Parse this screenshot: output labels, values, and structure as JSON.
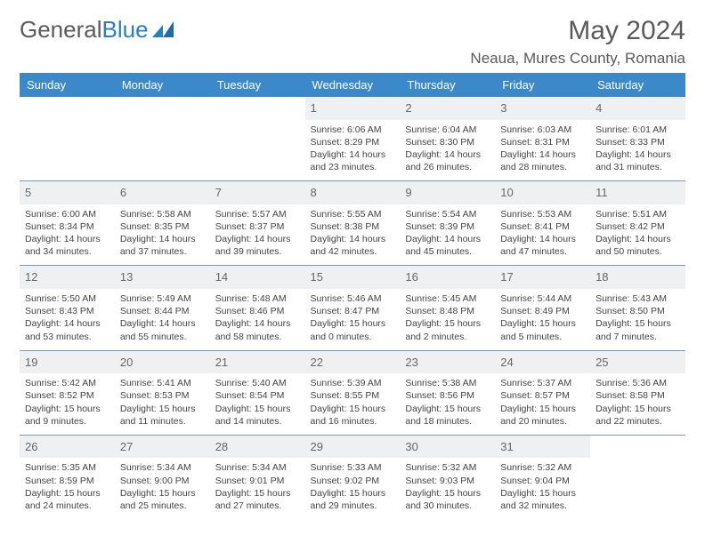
{
  "logo": {
    "general": "General",
    "blue": "Blue"
  },
  "title": "May 2024",
  "location": "Neaua, Mures County, Romania",
  "colors": {
    "header_bg": "#3b89c9",
    "header_text": "#ffffff",
    "daynum_bg": "#eef0f2",
    "daynum_text": "#676767",
    "rule": "#7a98b8",
    "body_text": "#444444",
    "title_text": "#5a5a5a"
  },
  "weekdays": [
    "Sunday",
    "Monday",
    "Tuesday",
    "Wednesday",
    "Thursday",
    "Friday",
    "Saturday"
  ],
  "weeks": [
    [
      null,
      null,
      null,
      {
        "n": "1",
        "l1": "Sunrise: 6:06 AM",
        "l2": "Sunset: 8:29 PM",
        "l3": "Daylight: 14 hours",
        "l4": "and 23 minutes."
      },
      {
        "n": "2",
        "l1": "Sunrise: 6:04 AM",
        "l2": "Sunset: 8:30 PM",
        "l3": "Daylight: 14 hours",
        "l4": "and 26 minutes."
      },
      {
        "n": "3",
        "l1": "Sunrise: 6:03 AM",
        "l2": "Sunset: 8:31 PM",
        "l3": "Daylight: 14 hours",
        "l4": "and 28 minutes."
      },
      {
        "n": "4",
        "l1": "Sunrise: 6:01 AM",
        "l2": "Sunset: 8:33 PM",
        "l3": "Daylight: 14 hours",
        "l4": "and 31 minutes."
      }
    ],
    [
      {
        "n": "5",
        "l1": "Sunrise: 6:00 AM",
        "l2": "Sunset: 8:34 PM",
        "l3": "Daylight: 14 hours",
        "l4": "and 34 minutes."
      },
      {
        "n": "6",
        "l1": "Sunrise: 5:58 AM",
        "l2": "Sunset: 8:35 PM",
        "l3": "Daylight: 14 hours",
        "l4": "and 37 minutes."
      },
      {
        "n": "7",
        "l1": "Sunrise: 5:57 AM",
        "l2": "Sunset: 8:37 PM",
        "l3": "Daylight: 14 hours",
        "l4": "and 39 minutes."
      },
      {
        "n": "8",
        "l1": "Sunrise: 5:55 AM",
        "l2": "Sunset: 8:38 PM",
        "l3": "Daylight: 14 hours",
        "l4": "and 42 minutes."
      },
      {
        "n": "9",
        "l1": "Sunrise: 5:54 AM",
        "l2": "Sunset: 8:39 PM",
        "l3": "Daylight: 14 hours",
        "l4": "and 45 minutes."
      },
      {
        "n": "10",
        "l1": "Sunrise: 5:53 AM",
        "l2": "Sunset: 8:41 PM",
        "l3": "Daylight: 14 hours",
        "l4": "and 47 minutes."
      },
      {
        "n": "11",
        "l1": "Sunrise: 5:51 AM",
        "l2": "Sunset: 8:42 PM",
        "l3": "Daylight: 14 hours",
        "l4": "and 50 minutes."
      }
    ],
    [
      {
        "n": "12",
        "l1": "Sunrise: 5:50 AM",
        "l2": "Sunset: 8:43 PM",
        "l3": "Daylight: 14 hours",
        "l4": "and 53 minutes."
      },
      {
        "n": "13",
        "l1": "Sunrise: 5:49 AM",
        "l2": "Sunset: 8:44 PM",
        "l3": "Daylight: 14 hours",
        "l4": "and 55 minutes."
      },
      {
        "n": "14",
        "l1": "Sunrise: 5:48 AM",
        "l2": "Sunset: 8:46 PM",
        "l3": "Daylight: 14 hours",
        "l4": "and 58 minutes."
      },
      {
        "n": "15",
        "l1": "Sunrise: 5:46 AM",
        "l2": "Sunset: 8:47 PM",
        "l3": "Daylight: 15 hours",
        "l4": "and 0 minutes."
      },
      {
        "n": "16",
        "l1": "Sunrise: 5:45 AM",
        "l2": "Sunset: 8:48 PM",
        "l3": "Daylight: 15 hours",
        "l4": "and 2 minutes."
      },
      {
        "n": "17",
        "l1": "Sunrise: 5:44 AM",
        "l2": "Sunset: 8:49 PM",
        "l3": "Daylight: 15 hours",
        "l4": "and 5 minutes."
      },
      {
        "n": "18",
        "l1": "Sunrise: 5:43 AM",
        "l2": "Sunset: 8:50 PM",
        "l3": "Daylight: 15 hours",
        "l4": "and 7 minutes."
      }
    ],
    [
      {
        "n": "19",
        "l1": "Sunrise: 5:42 AM",
        "l2": "Sunset: 8:52 PM",
        "l3": "Daylight: 15 hours",
        "l4": "and 9 minutes."
      },
      {
        "n": "20",
        "l1": "Sunrise: 5:41 AM",
        "l2": "Sunset: 8:53 PM",
        "l3": "Daylight: 15 hours",
        "l4": "and 11 minutes."
      },
      {
        "n": "21",
        "l1": "Sunrise: 5:40 AM",
        "l2": "Sunset: 8:54 PM",
        "l3": "Daylight: 15 hours",
        "l4": "and 14 minutes."
      },
      {
        "n": "22",
        "l1": "Sunrise: 5:39 AM",
        "l2": "Sunset: 8:55 PM",
        "l3": "Daylight: 15 hours",
        "l4": "and 16 minutes."
      },
      {
        "n": "23",
        "l1": "Sunrise: 5:38 AM",
        "l2": "Sunset: 8:56 PM",
        "l3": "Daylight: 15 hours",
        "l4": "and 18 minutes."
      },
      {
        "n": "24",
        "l1": "Sunrise: 5:37 AM",
        "l2": "Sunset: 8:57 PM",
        "l3": "Daylight: 15 hours",
        "l4": "and 20 minutes."
      },
      {
        "n": "25",
        "l1": "Sunrise: 5:36 AM",
        "l2": "Sunset: 8:58 PM",
        "l3": "Daylight: 15 hours",
        "l4": "and 22 minutes."
      }
    ],
    [
      {
        "n": "26",
        "l1": "Sunrise: 5:35 AM",
        "l2": "Sunset: 8:59 PM",
        "l3": "Daylight: 15 hours",
        "l4": "and 24 minutes."
      },
      {
        "n": "27",
        "l1": "Sunrise: 5:34 AM",
        "l2": "Sunset: 9:00 PM",
        "l3": "Daylight: 15 hours",
        "l4": "and 25 minutes."
      },
      {
        "n": "28",
        "l1": "Sunrise: 5:34 AM",
        "l2": "Sunset: 9:01 PM",
        "l3": "Daylight: 15 hours",
        "l4": "and 27 minutes."
      },
      {
        "n": "29",
        "l1": "Sunrise: 5:33 AM",
        "l2": "Sunset: 9:02 PM",
        "l3": "Daylight: 15 hours",
        "l4": "and 29 minutes."
      },
      {
        "n": "30",
        "l1": "Sunrise: 5:32 AM",
        "l2": "Sunset: 9:03 PM",
        "l3": "Daylight: 15 hours",
        "l4": "and 30 minutes."
      },
      {
        "n": "31",
        "l1": "Sunrise: 5:32 AM",
        "l2": "Sunset: 9:04 PM",
        "l3": "Daylight: 15 hours",
        "l4": "and 32 minutes."
      },
      null
    ]
  ]
}
